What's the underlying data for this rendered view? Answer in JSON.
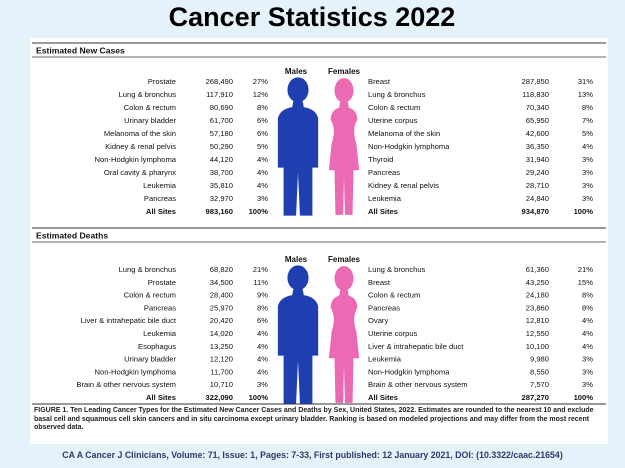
{
  "title": "Cancer Statistics 2022",
  "sections": [
    {
      "heading": "Estimated New Cases",
      "males_label": "Males",
      "females_label": "Females",
      "males": [
        [
          "Prostate",
          "268,490",
          "27%"
        ],
        [
          "Lung & bronchus",
          "117,910",
          "12%"
        ],
        [
          "Colon & rectum",
          "80,690",
          "8%"
        ],
        [
          "Urinary bladder",
          "61,700",
          "6%"
        ],
        [
          "Melanoma of the skin",
          "57,180",
          "6%"
        ],
        [
          "Kidney & renal pelvis",
          "50,290",
          "5%"
        ],
        [
          "Non-Hodgkin lymphoma",
          "44,120",
          "4%"
        ],
        [
          "Oral cavity & pharynx",
          "38,700",
          "4%"
        ],
        [
          "Leukemia",
          "35,810",
          "4%"
        ],
        [
          "Pancreas",
          "32,970",
          "3%"
        ],
        [
          "All Sites",
          "983,160",
          "100%"
        ]
      ],
      "females": [
        [
          "Breast",
          "287,850",
          "31%"
        ],
        [
          "Lung & bronchus",
          "118,830",
          "13%"
        ],
        [
          "Colon & rectum",
          "70,340",
          "8%"
        ],
        [
          "Uterine corpus",
          "65,950",
          "7%"
        ],
        [
          "Melanoma of the skin",
          "42,600",
          "5%"
        ],
        [
          "Non-Hodgkin lymphoma",
          "36,350",
          "4%"
        ],
        [
          "Thyroid",
          "31,940",
          "3%"
        ],
        [
          "Pancreas",
          "29,240",
          "3%"
        ],
        [
          "Kidney & renal pelvis",
          "28,710",
          "3%"
        ],
        [
          "Leukemia",
          "24,840",
          "3%"
        ],
        [
          "All Sites",
          "934,870",
          "100%"
        ]
      ]
    },
    {
      "heading": "Estimated Deaths",
      "males_label": "Males",
      "females_label": "Females",
      "males": [
        [
          "Lung & bronchus",
          "68,820",
          "21%"
        ],
        [
          "Prostate",
          "34,500",
          "11%"
        ],
        [
          "Colon & rectum",
          "28,400",
          "9%"
        ],
        [
          "Pancreas",
          "25,970",
          "8%"
        ],
        [
          "Liver & intrahepatic bile duct",
          "20,420",
          "6%"
        ],
        [
          "Leukemia",
          "14,020",
          "4%"
        ],
        [
          "Esophagus",
          "13,250",
          "4%"
        ],
        [
          "Urinary bladder",
          "12,120",
          "4%"
        ],
        [
          "Non-Hodgkin lymphoma",
          "11,700",
          "4%"
        ],
        [
          "Brain & other nervous system",
          "10,710",
          "3%"
        ],
        [
          "All Sites",
          "322,090",
          "100%"
        ]
      ],
      "females": [
        [
          "Lung & bronchus",
          "61,360",
          "21%"
        ],
        [
          "Breast",
          "43,250",
          "15%"
        ],
        [
          "Colon & rectum",
          "24,180",
          "8%"
        ],
        [
          "Pancreas",
          "23,860",
          "8%"
        ],
        [
          "Ovary",
          "12,810",
          "4%"
        ],
        [
          "Uterine corpus",
          "12,550",
          "4%"
        ],
        [
          "Liver & intrahepatic bile duct",
          "10,100",
          "4%"
        ],
        [
          "Leukemia",
          "9,980",
          "3%"
        ],
        [
          "Non-Hodgkin lymphoma",
          "8,550",
          "3%"
        ],
        [
          "Brain & other nervous system",
          "7,570",
          "3%"
        ],
        [
          "All Sites",
          "287,270",
          "100%"
        ]
      ]
    }
  ],
  "caption": {
    "label": "FIGURE 1.",
    "text": "Ten Leading Cancer Types for the Estimated New Cancer Cases and Deaths by Sex, United States, 2022. Estimates are rounded to the nearest 10 and exclude basal cell and squamous cell skin cancers and in situ carcinoma except urinary bladder. Ranking is based on modeled projections and may differ from the most recent observed data."
  },
  "citation": "CA A Cancer J Clinicians, Volume: 71, Issue: 1, Pages: 7-33, First published: 12 January 2021, DOI: (10.3322/caac.21654)"
}
